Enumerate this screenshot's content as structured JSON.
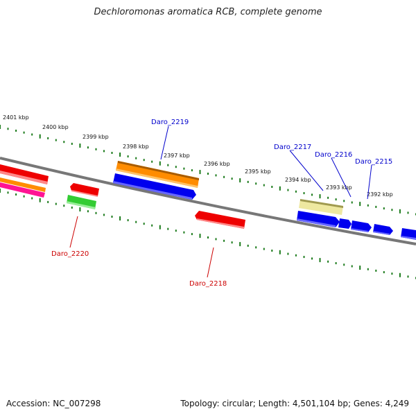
{
  "title": "Dechloromonas aromatica RCB, complete genome",
  "footer": {
    "accession": "Accession: NC_007298",
    "summary": "Topology: circular; Length: 4,501,104 bp; Genes: 4,249"
  },
  "colors": {
    "backbone": "#777777",
    "tick": "#1a7a1a",
    "label_blue": "#0000cc",
    "label_red": "#cc0000"
  },
  "kbp_labels": [
    "2401 kbp",
    "2400 kbp",
    "2399 kbp",
    "2398 kbp",
    "2397 kbp",
    "2396 kbp",
    "2395 kbp",
    "2394 kbp",
    "2393 kbp",
    "2392 kbp"
  ],
  "gene_labels": [
    {
      "name": "Daro_2219",
      "color": "blue"
    },
    {
      "name": "Daro_2217",
      "color": "blue"
    },
    {
      "name": "Daro_2216",
      "color": "blue"
    },
    {
      "name": "Daro_2215",
      "color": "blue"
    },
    {
      "name": "Daro_2220",
      "color": "red"
    },
    {
      "name": "Daro_2218",
      "color": "red"
    }
  ],
  "features": [
    {
      "name": "red-left",
      "color": "#ee0000"
    },
    {
      "name": "orange-left",
      "color": "#ff8c00"
    },
    {
      "name": "magenta-left",
      "color": "#ff1493"
    },
    {
      "name": "red-small",
      "color": "#ee0000"
    },
    {
      "name": "green-small",
      "color": "#33cc33"
    },
    {
      "name": "orange-2219",
      "color": "#ff8c00"
    },
    {
      "name": "blue-long",
      "color": "#0000ee"
    },
    {
      "name": "red-2218",
      "color": "#ee0000"
    },
    {
      "name": "khaki-2217",
      "color": "#eee8a0"
    },
    {
      "name": "blue-a",
      "color": "#0000ee"
    },
    {
      "name": "blue-b",
      "color": "#0000ee"
    },
    {
      "name": "blue-c",
      "color": "#0000ee"
    },
    {
      "name": "blue-d",
      "color": "#0000ee"
    },
    {
      "name": "blue-e",
      "color": "#0000ee"
    }
  ]
}
